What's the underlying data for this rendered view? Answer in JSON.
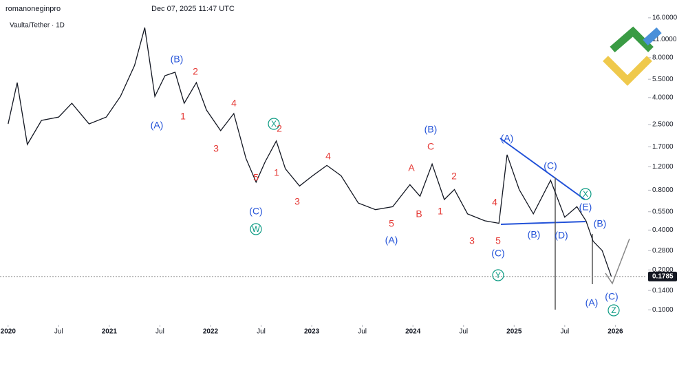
{
  "chart_data": {
    "type": "line",
    "author": "romanoneginpro",
    "timestamp": "Dec 07, 2025 11:47 UTC",
    "title": "Vaulta/Tether · 1D",
    "log_scale": true,
    "grid": false,
    "color": "#131722",
    "x": [
      2020.0,
      2020.09,
      2020.19,
      2020.33,
      2020.5,
      2020.63,
      2020.8,
      2020.97,
      2021.11,
      2021.25,
      2021.35,
      2021.45,
      2021.55,
      2021.65,
      2021.74,
      2021.86,
      2021.96,
      2022.1,
      2022.23,
      2022.35,
      2022.45,
      2022.54,
      2022.65,
      2022.74,
      2022.88,
      2023.01,
      2023.15,
      2023.29,
      2023.46,
      2023.63,
      2023.8,
      2023.97,
      2024.07,
      2024.19,
      2024.31,
      2024.41,
      2024.54,
      2024.71,
      2024.85,
      2024.93,
      2025.05,
      2025.19,
      2025.36,
      2025.5,
      2025.62,
      2025.71,
      2025.78,
      2025.87,
      2025.96
    ],
    "values": [
      2.53,
      5.19,
      1.77,
      2.69,
      2.85,
      3.62,
      2.53,
      2.85,
      4.08,
      7.0,
      13.5,
      4.08,
      5.85,
      6.21,
      3.62,
      5.19,
      3.22,
      2.25,
      3.03,
      1.39,
      0.92,
      1.31,
      1.88,
      1.16,
      0.86,
      1.03,
      1.23,
      1.03,
      0.64,
      0.57,
      0.6,
      0.88,
      0.72,
      1.26,
      0.68,
      0.81,
      0.53,
      0.47,
      0.45,
      1.48,
      0.81,
      0.53,
      0.95,
      0.5,
      0.6,
      0.47,
      0.33,
      0.28,
      0.1785
    ],
    "last_price": 0.1785,
    "xlim": [
      2019.92,
      2026.31
    ],
    "xticks": [
      {
        "value": 2020,
        "label": "2020"
      },
      {
        "value": 2020.5,
        "label": "Jul"
      },
      {
        "value": 2021,
        "label": "2021"
      },
      {
        "value": 2021.5,
        "label": "Jul"
      },
      {
        "value": 2022,
        "label": "2022"
      },
      {
        "value": 2022.5,
        "label": "Jul"
      },
      {
        "value": 2023,
        "label": "2023"
      },
      {
        "value": 2023.5,
        "label": "Jul"
      },
      {
        "value": 2024,
        "label": "2024"
      },
      {
        "value": 2024.5,
        "label": "Jul"
      },
      {
        "value": 2025,
        "label": "2025"
      },
      {
        "value": 2025.5,
        "label": "Jul"
      },
      {
        "value": 2026,
        "label": "2026"
      }
    ],
    "ylim": [
      0.079,
      21.8
    ],
    "yticks": [
      {
        "value": 16,
        "label": "16.0000"
      },
      {
        "value": 11,
        "label": "11.0000"
      },
      {
        "value": 8,
        "label": "8.0000"
      },
      {
        "value": 5.5,
        "label": "5.5000"
      },
      {
        "value": 4,
        "label": "4.0000"
      },
      {
        "value": 2.5,
        "label": "2.5000"
      },
      {
        "value": 1.7,
        "label": "1.7000"
      },
      {
        "value": 1.2,
        "label": "1.2000"
      },
      {
        "value": 0.8,
        "label": "0.8000"
      },
      {
        "value": 0.55,
        "label": "0.5500"
      },
      {
        "value": 0.4,
        "label": "0.4000"
      },
      {
        "value": 0.28,
        "label": "0.2800"
      },
      {
        "value": 0.2,
        "label": "0.2000"
      },
      {
        "value": 0.14,
        "label": "0.1400"
      },
      {
        "value": 0.1,
        "label": "0.1000"
      }
    ],
    "annotations": [
      {
        "text": "(B)",
        "color": "#2151d8"
      },
      {
        "text": "2",
        "color": "#e53935"
      },
      {
        "text": "(A)",
        "color": "#2151d8"
      },
      {
        "text": "1",
        "color": "#e53935"
      },
      {
        "text": "3",
        "color": "#e53935"
      },
      {
        "text": "4",
        "color": "#e53935"
      },
      {
        "text": "X",
        "color": "#089981",
        "circled": true
      },
      {
        "text": "2",
        "color": "#e53935"
      },
      {
        "text": "1",
        "color": "#e53935"
      },
      {
        "text": "5",
        "color": "#e53935"
      },
      {
        "text": "(C)",
        "color": "#2151d8"
      },
      {
        "text": "W",
        "color": "#089981",
        "circled": true
      },
      {
        "text": "3",
        "color": "#e53935"
      },
      {
        "text": "4",
        "color": "#e53935"
      },
      {
        "text": "(B)",
        "color": "#2151d8"
      },
      {
        "text": "C",
        "color": "#e53935"
      },
      {
        "text": "A",
        "color": "#e53935"
      },
      {
        "text": "2",
        "color": "#e53935"
      },
      {
        "text": "1",
        "color": "#e53935"
      },
      {
        "text": "B",
        "color": "#e53935"
      },
      {
        "text": "5",
        "color": "#e53935"
      },
      {
        "text": "(A)",
        "color": "#2151d8"
      },
      {
        "text": "3",
        "color": "#e53935"
      },
      {
        "text": "5",
        "color": "#e53935"
      },
      {
        "text": "(C)",
        "color": "#2151d8"
      },
      {
        "text": "Y",
        "color": "#089981",
        "circled": true
      },
      {
        "text": "4",
        "color": "#e53935"
      },
      {
        "text": "(A)",
        "color": "#2151d8"
      },
      {
        "text": "(C)",
        "color": "#2151d8"
      },
      {
        "text": "X",
        "color": "#089981",
        "circled": true
      },
      {
        "text": "(E)",
        "color": "#2151d8"
      },
      {
        "text": "(B)",
        "color": "#2151d8"
      },
      {
        "text": "(B)",
        "color": "#2151d8"
      },
      {
        "text": "(D)",
        "color": "#2151d8"
      },
      {
        "text": "(A)",
        "color": "#2151d8"
      },
      {
        "text": "(C)",
        "color": "#2151d8"
      },
      {
        "text": "Z",
        "color": "#089981",
        "circled": true
      }
    ]
  }
}
